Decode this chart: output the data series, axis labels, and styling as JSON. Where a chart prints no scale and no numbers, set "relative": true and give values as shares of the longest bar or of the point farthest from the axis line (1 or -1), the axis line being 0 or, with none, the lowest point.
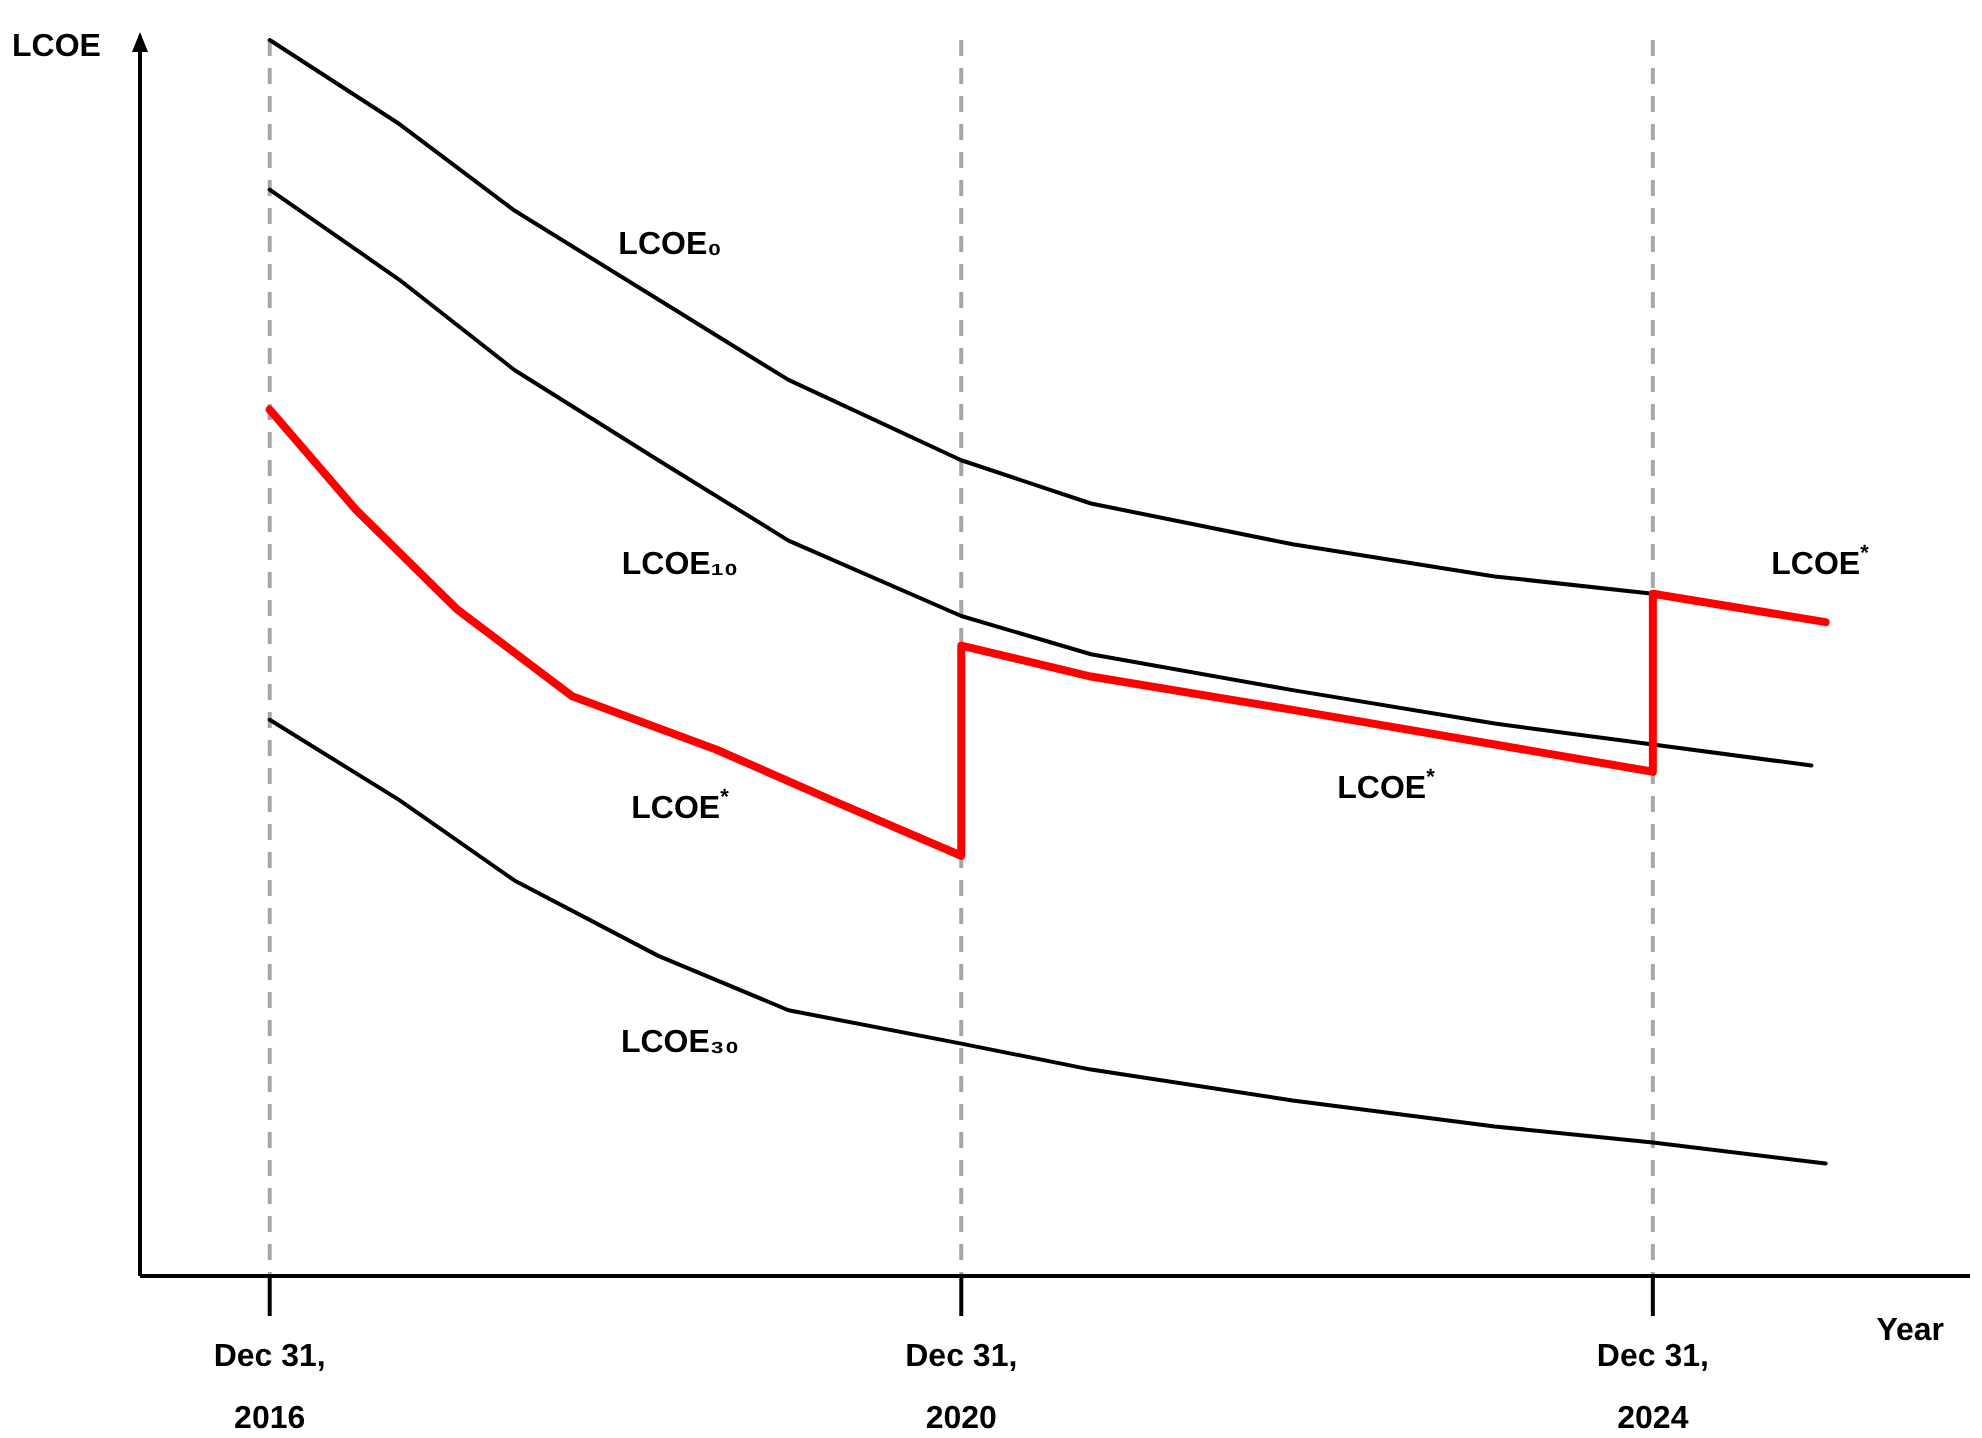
{
  "chart_data": {
    "type": "line",
    "relative": true,
    "xlabel": "Year",
    "ylabel": "LCOE",
    "xlim": [
      "2016-04",
      "2026-11"
    ],
    "xticks": [
      {
        "value": "2016-12-31",
        "label": "Dec 31, 2016"
      },
      {
        "value": "2020-12-31",
        "label": "Dec 31, 2020"
      },
      {
        "value": "2024-12-31",
        "label": "Dec 31, 2024"
      }
    ],
    "tick_labels": "x",
    "marker": "none",
    "line_style": "solid",
    "ref_lines": [
      {
        "axis": "x",
        "value": "2016-12-31",
        "color": "#a6a6a6",
        "line_style": "dashed"
      },
      {
        "axis": "x",
        "value": "2020-12-31",
        "color": "#a6a6a6",
        "line_style": "dashed"
      },
      {
        "axis": "x",
        "value": "2024-12-31",
        "color": "#a6a6a6",
        "line_style": "dashed"
      }
    ],
    "series": [
      {
        "name": "LCOE₀",
        "color": "#000000",
        "x": [
          "2016-12-31",
          "2017-10",
          "2018-06",
          "2019-04",
          "2020-01",
          "2020-12-31",
          "2021-10",
          "2022-12",
          "2024-02",
          "2024-12-31"
        ],
        "values": [
          1,
          0.932,
          0.862,
          0.79,
          0.725,
          0.66,
          0.625,
          0.592,
          0.566,
          0.552
        ]
      },
      {
        "name": "LCOE₁₀",
        "color": "#000000",
        "x": [
          "2016-12-31",
          "2017-10",
          "2018-06",
          "2019-04",
          "2020-01",
          "2020-12-31",
          "2021-10",
          "2022-12",
          "2024-02",
          "2024-12-31",
          "2025-12"
        ],
        "values": [
          0.879,
          0.806,
          0.733,
          0.66,
          0.595,
          0.534,
          0.503,
          0.474,
          0.447,
          0.43,
          0.413
        ]
      },
      {
        "name": "LCOE₃₀",
        "color": "#000000",
        "x": [
          "2016-12-31",
          "2017-10",
          "2018-06",
          "2019-04",
          "2020-01",
          "2020-12-31",
          "2021-10",
          "2022-12",
          "2024-02",
          "2024-12-31",
          "2025-12-31"
        ],
        "values": [
          0.45,
          0.385,
          0.32,
          0.259,
          0.215,
          0.188,
          0.167,
          0.142,
          0.121,
          0.108,
          0.091
        ]
      },
      {
        "name": "LCOE$^{*}$",
        "color": "#ff0000",
        "x": [
          "2016-12-31",
          "2017-07",
          "2018-02",
          "2018-10",
          "2019-08",
          "2020-04",
          "2020-12-31",
          "2020-12-31",
          "2021-10",
          "2022-12",
          "2024-02",
          "2024-12-31",
          "2024-12-31",
          "2025-12-31"
        ],
        "values": [
          0.701,
          0.62,
          0.539,
          0.469,
          0.426,
          0.385,
          0.34,
          0.51,
          0.485,
          0.458,
          0.43,
          0.408,
          0.552,
          0.529
        ]
      }
    ],
    "annotations": [
      "LCOE$^{*}$",
      "LCOE$^{*}$"
    ]
  }
}
